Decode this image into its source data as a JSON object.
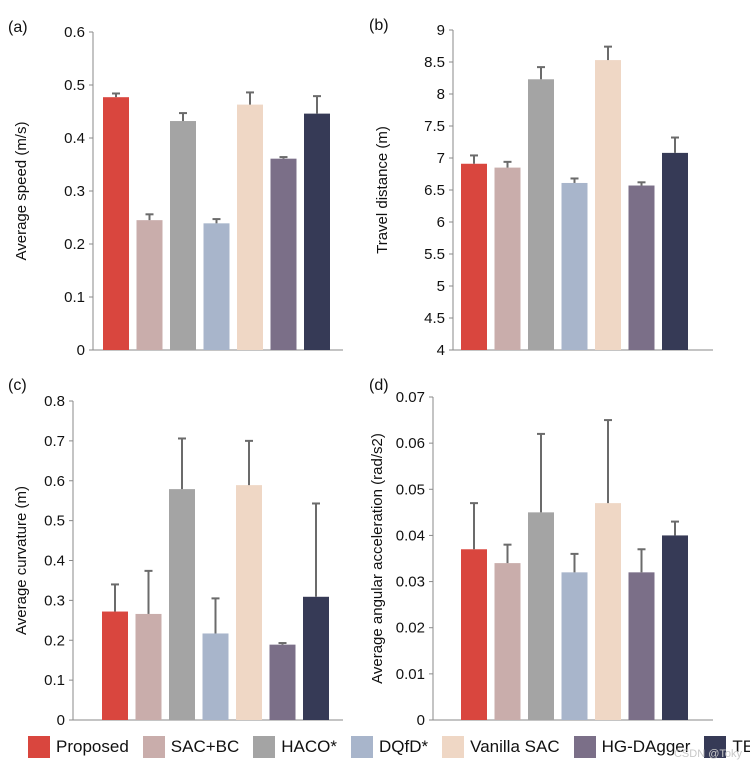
{
  "series": [
    {
      "name": "Proposed",
      "color": "#d9463e"
    },
    {
      "name": "SAC+BC",
      "color": "#c9adab"
    },
    {
      "name": "HACO*",
      "color": "#a4a4a4"
    },
    {
      "name": "DQfD*",
      "color": "#a8b5cb"
    },
    {
      "name": "Vanilla SAC",
      "color": "#efd7c5"
    },
    {
      "name": "HG-DAgger",
      "color": "#7b6f88"
    },
    {
      "name": "TEB",
      "color": "#363a56"
    }
  ],
  "watermark": "CSDN @Toky",
  "chart_data": [
    {
      "type": "bar",
      "panel_label": "(a)",
      "ylabel": "Average speed (m/s)",
      "ylim": [
        0,
        0.6
      ],
      "yticks": [
        0,
        0.1,
        0.2,
        0.3,
        0.4,
        0.5,
        0.6
      ],
      "ytick_labels": [
        "0",
        "0.1",
        "0.2",
        "0.3",
        "0.4",
        "0.5",
        "0.6"
      ],
      "categories": [
        "Proposed",
        "SAC+BC",
        "HACO*",
        "DQfD*",
        "Vanilla SAC",
        "HG-DAgger",
        "TEB"
      ],
      "values": [
        0.477,
        0.245,
        0.432,
        0.239,
        0.463,
        0.361,
        0.446
      ],
      "errors": [
        0.007,
        0.011,
        0.015,
        0.008,
        0.023,
        0.003,
        0.033
      ]
    },
    {
      "type": "bar",
      "panel_label": "(b)",
      "ylabel": "Travel distance (m)",
      "ylim": [
        4,
        9
      ],
      "yticks": [
        4,
        4.5,
        5,
        5.5,
        6,
        6.5,
        7,
        7.5,
        8,
        8.5,
        9
      ],
      "ytick_labels": [
        "4",
        "4.5",
        "5",
        "5.5",
        "6",
        "6.5",
        "7",
        "7.5",
        "8",
        "8.5",
        "9"
      ],
      "categories": [
        "Proposed",
        "SAC+BC",
        "HACO*",
        "DQfD*",
        "Vanilla SAC",
        "HG-DAgger",
        "TEB"
      ],
      "values": [
        6.91,
        6.85,
        8.23,
        6.61,
        8.53,
        6.57,
        7.08
      ],
      "errors": [
        0.13,
        0.09,
        0.19,
        0.07,
        0.21,
        0.05,
        0.24
      ]
    },
    {
      "type": "bar",
      "panel_label": "(c)",
      "ylabel": "Average curvature (m)",
      "ylim": [
        0,
        0.8
      ],
      "yticks": [
        0,
        0.1,
        0.2,
        0.3,
        0.4,
        0.5,
        0.6,
        0.7,
        0.8
      ],
      "ytick_labels": [
        "0",
        "0.1",
        "0.2",
        "0.3",
        "0.4",
        "0.5",
        "0.6",
        "0.7",
        "0.8"
      ],
      "categories": [
        "Proposed",
        "SAC+BC",
        "HACO*",
        "DQfD*",
        "Vanilla SAC",
        "HG-DAgger",
        "TEB"
      ],
      "values": [
        0.272,
        0.266,
        0.579,
        0.217,
        0.589,
        0.189,
        0.309
      ],
      "errors": [
        0.068,
        0.108,
        0.127,
        0.088,
        0.111,
        0.004,
        0.234
      ]
    },
    {
      "type": "bar",
      "panel_label": "(d)",
      "ylabel": "Average angular acceleration (rad/s2)",
      "ylim": [
        0,
        0.07
      ],
      "yticks": [
        0,
        0.01,
        0.02,
        0.03,
        0.04,
        0.05,
        0.06,
        0.07
      ],
      "ytick_labels": [
        "0",
        "0.01",
        "0.02",
        "0.03",
        "0.04",
        "0.05",
        "0.06",
        "0.07"
      ],
      "categories": [
        "Proposed",
        "SAC+BC",
        "HACO*",
        "DQfD*",
        "Vanilla SAC",
        "HG-DAgger",
        "TEB"
      ],
      "values": [
        0.037,
        0.034,
        0.045,
        0.032,
        0.047,
        0.032,
        0.04
      ],
      "errors": [
        0.01,
        0.004,
        0.017,
        0.004,
        0.018,
        0.005,
        0.003
      ]
    }
  ]
}
